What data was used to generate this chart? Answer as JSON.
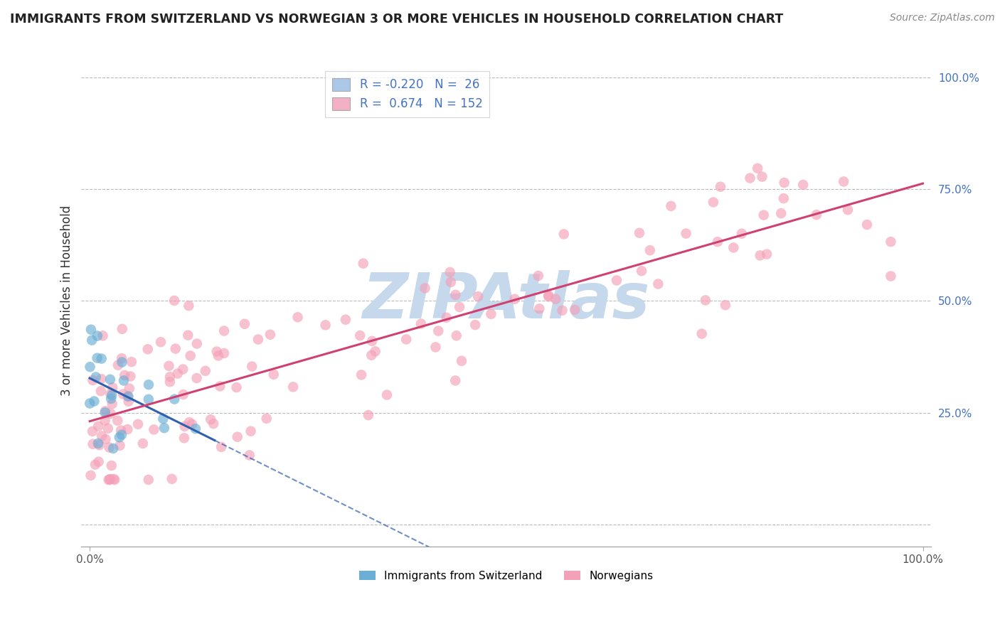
{
  "title": "IMMIGRANTS FROM SWITZERLAND VS NORWEGIAN 3 OR MORE VEHICLES IN HOUSEHOLD CORRELATION CHART",
  "source": "Source: ZipAtlas.com",
  "ylabel": "3 or more Vehicles in Household",
  "legend_entries": [
    {
      "color_patch": "#aac8e8",
      "R": -0.22,
      "N": 26
    },
    {
      "color_patch": "#f4b0c4",
      "R": 0.674,
      "N": 152
    }
  ],
  "legend_labels": [
    "Immigrants from Switzerland",
    "Norwegians"
  ],
  "blue_scatter_color": "#6baed6",
  "pink_scatter_color": "#f4a0b8",
  "blue_line_color": "#3060b0",
  "pink_line_color": "#d04070",
  "grid_color": "#bbbbbb",
  "background_color": "#ffffff",
  "watermark": "ZIPAtlas",
  "watermark_color": "#c5d8ec",
  "swiss_seed": 12,
  "norw_seed": 7
}
